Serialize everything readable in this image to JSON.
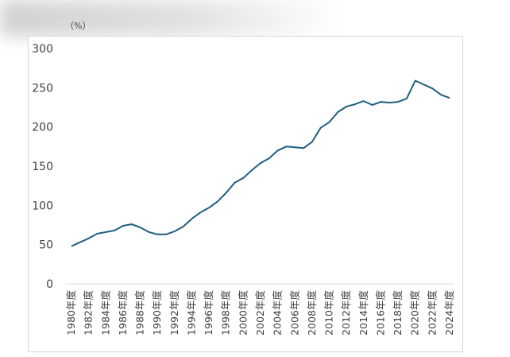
{
  "chart_data": {
    "type": "line",
    "unit_label": "（%）",
    "title": "",
    "xlabel": "",
    "ylabel": "",
    "ylim": [
      0,
      300
    ],
    "yticks": [
      0,
      50,
      100,
      150,
      200,
      250,
      300
    ],
    "grid": false,
    "legend": "none",
    "x": [
      "1980年度",
      "1981年度",
      "1982年度",
      "1983年度",
      "1984年度",
      "1985年度",
      "1986年度",
      "1987年度",
      "1988年度",
      "1989年度",
      "1990年度",
      "1991年度",
      "1992年度",
      "1993年度",
      "1994年度",
      "1995年度",
      "1996年度",
      "1997年度",
      "1998年度",
      "1999年度",
      "2000年度",
      "2001年度",
      "2002年度",
      "2003年度",
      "2004年度",
      "2005年度",
      "2006年度",
      "2007年度",
      "2008年度",
      "2009年度",
      "2010年度",
      "2011年度",
      "2012年度",
      "2013年度",
      "2014年度",
      "2015年度",
      "2016年度",
      "2017年度",
      "2018年度",
      "2019年度",
      "2020年度",
      "2021年度",
      "2022年度",
      "2023年度",
      "2024年度"
    ],
    "xtick_labels": [
      "1980年度",
      "1982年度",
      "1984年度",
      "1986年度",
      "1988年度",
      "1990年度",
      "1992年度",
      "1994年度",
      "1996年度",
      "1998年度",
      "2000年度",
      "2002年度",
      "2004年度",
      "2006年度",
      "2008年度",
      "2010年度",
      "2012年度",
      "2014年度",
      "2016年度",
      "2018年度",
      "2020年度",
      "2022年度",
      "2024年度"
    ],
    "series": [
      {
        "color": "#1f5f7f",
        "values": [
          48,
          53,
          58,
          64,
          66,
          68,
          74,
          76,
          72,
          66,
          63,
          63,
          67,
          73,
          83,
          91,
          97,
          105,
          116,
          129,
          135,
          145,
          154,
          160,
          170,
          175,
          174,
          173,
          181,
          199,
          206,
          219,
          226,
          229,
          233,
          228,
          232,
          231,
          232,
          236,
          259,
          254,
          249,
          241,
          237
        ]
      }
    ]
  }
}
